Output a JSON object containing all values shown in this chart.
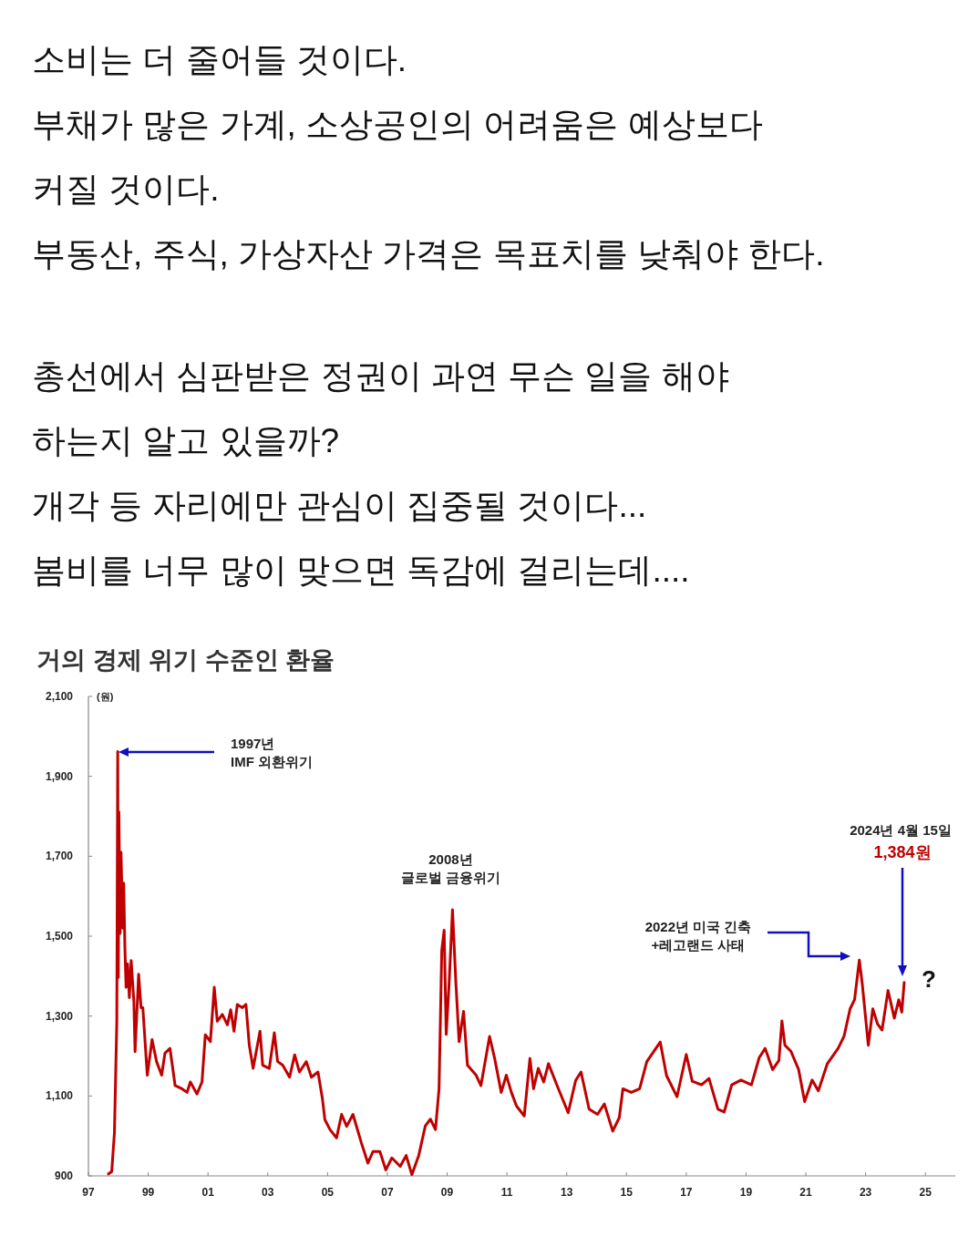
{
  "chart_data": {
    "type": "line",
    "title": "거의 경제 위기 수준인 환율",
    "ylabel": "(원)",
    "annotations": [
      "소비는 더 줄어들 것이다.\n부채가 많은 가계, 소상공인의 어려움은 예상보다\n커질 것이다.\n부동산, 주식, 가상자산 가격은 목표치를 낮춰야 한다.",
      "총선에서 심판받은 정권이 과연 무슨 일을 해야\n하는지 알고 있을까?\n개각 등 자리에만 관심이 집중될 것이다...\n봄비를 너무 많이 맞으면 독감에 걸리는데....",
      "1997년\nIMF 외환위기",
      "2022년 미국 긴축\n+레고랜드 사태",
      "2024년 4월 15일",
      "1,384원",
      "?",
      {
        "text": "2008년\n글로벌 금융위기",
        "x": 2009.18,
        "y": 1566
      }
    ],
    "xlim": [
      1997,
      2026
    ],
    "ylim": [
      900,
      2100
    ],
    "xticks": [
      {
        "value": 1997,
        "label": "97"
      },
      {
        "value": 1999,
        "label": "99"
      },
      {
        "value": 2001,
        "label": "01"
      },
      {
        "value": 2003,
        "label": "03"
      },
      {
        "value": 2005,
        "label": "05"
      },
      {
        "value": 2007,
        "label": "07"
      },
      {
        "value": 2009,
        "label": "09"
      },
      {
        "value": 2011,
        "label": "11"
      },
      {
        "value": 2013,
        "label": "13"
      },
      {
        "value": 2015,
        "label": "15"
      },
      {
        "value": 2017,
        "label": "17"
      },
      {
        "value": 2019,
        "label": "19"
      },
      {
        "value": 2021,
        "label": "21"
      },
      {
        "value": 2023,
        "label": "23"
      },
      {
        "value": 2025,
        "label": "25"
      }
    ],
    "yticks": [
      {
        "value": 900,
        "label": "900"
      },
      {
        "value": 1100,
        "label": "1,100"
      },
      {
        "value": 1300,
        "label": "1,300"
      },
      {
        "value": 1500,
        "label": "1,500"
      },
      {
        "value": 1700,
        "label": "1,700"
      },
      {
        "value": 1900,
        "label": "1,900"
      },
      {
        "value": 2100,
        "label": "2,100"
      }
    ],
    "grid": false,
    "series": [
      {
        "color": "#c00000",
        "x": [
          1997.67,
          1997.78,
          1997.87,
          1997.95,
          1997.98,
          1998.0,
          1998.02,
          1998.06,
          1998.09,
          1998.15,
          1998.18,
          1998.22,
          1998.26,
          1998.31,
          1998.37,
          1998.43,
          1998.52,
          1998.56,
          1998.68,
          1998.76,
          1998.82,
          1998.97,
          1999.13,
          1999.28,
          1999.45,
          1999.56,
          1999.73,
          1999.9,
          2000.13,
          2000.3,
          2000.41,
          2000.63,
          2000.8,
          2000.91,
          2001.08,
          2001.21,
          2001.31,
          2001.48,
          2001.65,
          2001.76,
          2001.87,
          2001.98,
          2002.15,
          2002.27,
          2002.38,
          2002.51,
          2002.74,
          2002.83,
          2003.05,
          2003.22,
          2003.33,
          2003.5,
          2003.73,
          2003.9,
          2004.06,
          2004.29,
          2004.46,
          2004.68,
          2004.83,
          2004.91,
          2005.08,
          2005.3,
          2005.47,
          2005.64,
          2005.85,
          2006.13,
          2006.35,
          2006.52,
          2006.75,
          2006.95,
          2007.15,
          2007.43,
          2007.63,
          2007.82,
          2008.05,
          2008.27,
          2008.44,
          2008.61,
          2008.73,
          2008.82,
          2008.9,
          2008.97,
          2009.07,
          2009.18,
          2009.29,
          2009.4,
          2009.55,
          2009.68,
          2009.97,
          2010.13,
          2010.42,
          2010.59,
          2010.81,
          2010.98,
          2011.15,
          2011.32,
          2011.58,
          2011.77,
          2011.89,
          2012.05,
          2012.23,
          2012.39,
          2012.68,
          2013.05,
          2013.3,
          2013.48,
          2013.75,
          2014.03,
          2014.26,
          2014.54,
          2014.76,
          2014.88,
          2015.16,
          2015.44,
          2015.68,
          2016.13,
          2016.34,
          2016.69,
          2017.0,
          2017.2,
          2017.51,
          2017.76,
          2018.06,
          2018.27,
          2018.52,
          2018.83,
          2019.18,
          2019.44,
          2019.64,
          2019.89,
          2020.1,
          2020.2,
          2020.3,
          2020.5,
          2020.76,
          2020.96,
          2021.21,
          2021.42,
          2021.72,
          2022.08,
          2022.28,
          2022.48,
          2022.63,
          2022.79,
          2022.89,
          2023.09,
          2023.24,
          2023.4,
          2023.55,
          2023.75,
          2023.96,
          2024.11,
          2024.21,
          2024.29
        ],
        "values": [
          905,
          911,
          1008,
          1287,
          1962,
          1397,
          1811,
          1507,
          1710,
          1520,
          1633,
          1473,
          1372,
          1431,
          1346,
          1439,
          1337,
          1211,
          1405,
          1321,
          1321,
          1152,
          1241,
          1186,
          1152,
          1207,
          1219,
          1126,
          1118,
          1109,
          1135,
          1105,
          1135,
          1253,
          1236,
          1372,
          1287,
          1304,
          1278,
          1316,
          1262,
          1329,
          1321,
          1329,
          1228,
          1169,
          1262,
          1177,
          1169,
          1258,
          1186,
          1177,
          1147,
          1203,
          1160,
          1186,
          1147,
          1160,
          1092,
          1041,
          1016,
          995,
          1054,
          1024,
          1054,
          983,
          932,
          961,
          961,
          915,
          945,
          924,
          951,
          903,
          951,
          1025,
          1042,
          1016,
          1118,
          1464,
          1515,
          1254,
          1388,
          1566,
          1388,
          1236,
          1312,
          1177,
          1152,
          1126,
          1249,
          1194,
          1109,
          1152,
          1109,
          1075,
          1050,
          1194,
          1118,
          1169,
          1135,
          1181,
          1126,
          1058,
          1139,
          1160,
          1067,
          1054,
          1080,
          1012,
          1046,
          1118,
          1109,
          1118,
          1186,
          1235,
          1151,
          1098,
          1204,
          1137,
          1128,
          1144,
          1067,
          1060,
          1128,
          1140,
          1128,
          1196,
          1219,
          1166,
          1189,
          1288,
          1227,
          1212,
          1166,
          1086,
          1140,
          1113,
          1181,
          1219,
          1250,
          1318,
          1341,
          1440,
          1379,
          1227,
          1318,
          1280,
          1265,
          1364,
          1295,
          1341,
          1310,
          1384
        ]
      }
    ]
  }
}
